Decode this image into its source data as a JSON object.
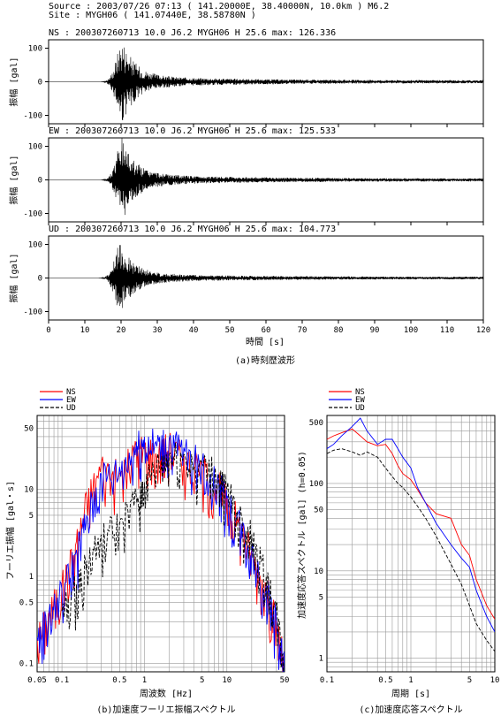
{
  "header": {
    "source_line": "Source : 2003/07/26 07:13 ( 141.20000E, 38.40000N,   10.0km ) M6.2",
    "site_line": "Site   : MYGH06 ( 141.07440E, 38.58780N )"
  },
  "colors": {
    "NS": "#ff0000",
    "EW": "#0000ff",
    "UD": "#000000",
    "grid": "#999999"
  },
  "chart_data": [
    {
      "type": "line",
      "panel": "time-history",
      "caption": "(a)時刻歴波形",
      "xlabel": "時間 [s]",
      "ylabel": "振幅 [gal]",
      "xlim": [
        0,
        120
      ],
      "ylim": [
        -125,
        125
      ],
      "x_ticks": [
        0,
        10,
        20,
        30,
        40,
        50,
        60,
        70,
        80,
        90,
        100,
        110,
        120
      ],
      "y_ticks": [
        100,
        0,
        -100
      ],
      "series": [
        {
          "name": "NS",
          "label": "NS : 200307260713  10.0 J6.2 MYGH06 H  25.6 max: 126.336",
          "max": 126.336,
          "onset_s": 14.5,
          "peak_time_s": 20.5
        },
        {
          "name": "EW",
          "label": "EW : 200307260713  10.0 J6.2 MYGH06 H  25.6 max: 125.533",
          "max": 125.533,
          "onset_s": 14.5,
          "peak_time_s": 20.5
        },
        {
          "name": "UD",
          "label": "UD : 200307260713  10.0 J6.2 MYGH06 H  25.6 max: 104.773",
          "max": 104.773,
          "onset_s": 13.5,
          "peak_time_s": 20.0
        }
      ]
    },
    {
      "type": "line",
      "panel": "fourier-spectrum",
      "caption": "(b)加速度フーリエ振幅スペクトル",
      "xlabel": "周波数 [Hz]",
      "ylabel": "フーリエ振幅 [gal・s]",
      "xscale": "log",
      "yscale": "log",
      "xlim": [
        0.05,
        50
      ],
      "ylim": [
        0.08,
        70
      ],
      "x_ticks": [
        0.05,
        0.1,
        0.5,
        1,
        5,
        10,
        50
      ],
      "x_tick_labels": [
        "0.05",
        "0.1",
        "0.5",
        "1",
        "5",
        "10",
        "50"
      ],
      "y_ticks": [
        0.1,
        0.5,
        1,
        5,
        10,
        50
      ],
      "y_tick_labels": [
        "0.1",
        "0.5",
        "1",
        "5",
        "10",
        "50"
      ],
      "legend": [
        "NS",
        "EW",
        "UD"
      ],
      "series": [
        {
          "name": "NS",
          "x": [
            0.05,
            0.07,
            0.1,
            0.15,
            0.2,
            0.3,
            0.5,
            0.8,
            1,
            1.5,
            2,
            3,
            5,
            8,
            10,
            15,
            20,
            30,
            40,
            50
          ],
          "y": [
            0.2,
            0.4,
            0.8,
            2.5,
            8,
            20,
            15,
            30,
            32,
            28,
            35,
            25,
            18,
            12,
            8,
            4,
            2,
            0.8,
            0.3,
            0.1
          ]
        },
        {
          "name": "EW",
          "x": [
            0.05,
            0.07,
            0.1,
            0.15,
            0.2,
            0.3,
            0.5,
            0.8,
            1,
            1.5,
            2,
            3,
            5,
            8,
            10,
            15,
            20,
            30,
            40,
            50
          ],
          "y": [
            0.2,
            0.4,
            0.7,
            2.0,
            5,
            15,
            18,
            35,
            40,
            35,
            38,
            30,
            20,
            12,
            8,
            4,
            2,
            0.8,
            0.3,
            0.1
          ]
        },
        {
          "name": "UD",
          "x": [
            0.1,
            0.15,
            0.2,
            0.3,
            0.5,
            0.8,
            1,
            1.5,
            2,
            3,
            5,
            8,
            10,
            15,
            20,
            30,
            40,
            50
          ],
          "y": [
            0.4,
            0.8,
            1.5,
            3,
            4,
            8,
            12,
            20,
            25,
            25,
            20,
            15,
            10,
            5,
            3,
            1,
            0.4,
            0.1
          ]
        }
      ]
    },
    {
      "type": "line",
      "panel": "response-spectrum",
      "caption": "(c)加速度応答スペクトル",
      "xlabel": "周期 [s]",
      "ylabel": "加速度応答スペクトル [gal] (h=0.05)",
      "xscale": "log",
      "yscale": "log",
      "xlim": [
        0.1,
        10
      ],
      "ylim": [
        0.7,
        600
      ],
      "x_ticks": [
        0.1,
        0.5,
        1,
        5,
        10
      ],
      "x_tick_labels": [
        "0.1",
        "0.5",
        "1",
        "5",
        "10"
      ],
      "y_ticks": [
        1,
        5,
        10,
        50,
        100,
        500
      ],
      "y_tick_labels": [
        "1",
        "5",
        "10",
        "50",
        "100",
        "500"
      ],
      "legend": [
        "NS",
        "EW",
        "UD"
      ],
      "series": [
        {
          "name": "NS",
          "x": [
            0.1,
            0.12,
            0.15,
            0.2,
            0.25,
            0.3,
            0.4,
            0.5,
            0.6,
            0.7,
            0.8,
            1,
            1.2,
            1.5,
            2,
            3,
            4,
            5,
            6,
            8,
            10
          ],
          "y": [
            320,
            350,
            380,
            420,
            350,
            300,
            270,
            280,
            220,
            160,
            130,
            110,
            85,
            60,
            45,
            40,
            20,
            15,
            8,
            4,
            2.8
          ]
        },
        {
          "name": "EW",
          "x": [
            0.1,
            0.12,
            0.15,
            0.2,
            0.25,
            0.3,
            0.4,
            0.5,
            0.6,
            0.7,
            0.8,
            1,
            1.2,
            1.5,
            2,
            3,
            4,
            5,
            6,
            8,
            10
          ],
          "y": [
            250,
            280,
            350,
            450,
            560,
            400,
            280,
            320,
            320,
            250,
            200,
            150,
            90,
            60,
            35,
            20,
            14,
            11,
            6,
            3,
            2
          ]
        },
        {
          "name": "UD",
          "x": [
            0.1,
            0.12,
            0.15,
            0.2,
            0.25,
            0.3,
            0.4,
            0.5,
            0.6,
            0.7,
            0.8,
            1,
            1.2,
            1.5,
            2,
            3,
            4,
            5,
            6,
            8,
            10
          ],
          "y": [
            220,
            240,
            250,
            230,
            210,
            230,
            200,
            150,
            120,
            100,
            90,
            70,
            55,
            40,
            25,
            12,
            7,
            4,
            2.5,
            1.6,
            1.2
          ]
        }
      ]
    }
  ]
}
